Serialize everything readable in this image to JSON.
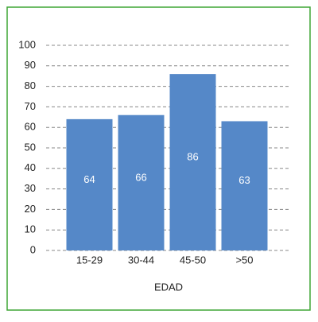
{
  "chart_data": {
    "type": "bar",
    "x_label": "EDAD",
    "categories": [
      "15-29",
      "30-44",
      "45-50",
      ">50"
    ],
    "values": [
      64,
      66,
      86,
      63
    ],
    "color": "#5588c8",
    "ylim": [
      0,
      100
    ],
    "yticks": [
      0,
      10,
      20,
      30,
      40,
      50,
      60,
      70,
      80,
      90,
      100
    ],
    "grid": true
  }
}
